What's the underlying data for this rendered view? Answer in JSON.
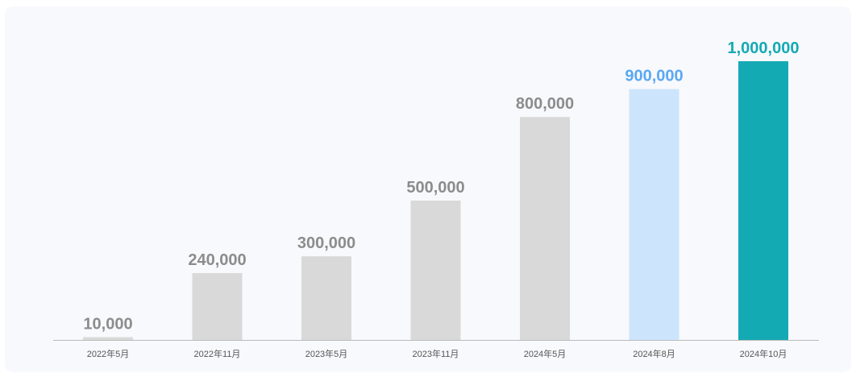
{
  "chart_data": {
    "type": "bar",
    "categories": [
      "2022年5月",
      "2022年11月",
      "2023年5月",
      "2023年11月",
      "2024年5月",
      "2024年8月",
      "2024年10月"
    ],
    "values": [
      10000,
      240000,
      300000,
      500000,
      800000,
      900000,
      1000000
    ],
    "value_labels": [
      "10,000",
      "240,000",
      "300,000",
      "500,000",
      "800,000",
      "900,000",
      "1,000,000"
    ],
    "ylim": [
      0,
      1000000
    ],
    "grid": false,
    "colors": {
      "default_bar": "#d9d9d9",
      "default_label": "#8c8c8c",
      "highlight_bar": "#cde5fc",
      "highlight_label": "#5aa8f5",
      "final_bar": "#14aab4",
      "final_label": "#14aab4",
      "axis": "#bbbbbb"
    },
    "bar_styles": [
      "default",
      "default",
      "default",
      "default",
      "default",
      "highlight",
      "final"
    ]
  }
}
